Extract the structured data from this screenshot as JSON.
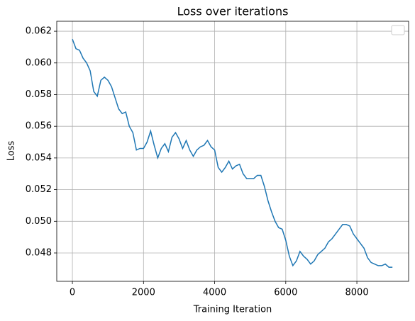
{
  "chart_data": {
    "type": "line",
    "title": "Loss over iterations",
    "x_label": "Training Iteration",
    "y_label": "Loss",
    "x": [
      0,
      100,
      200,
      300,
      400,
      500,
      600,
      700,
      800,
      900,
      1000,
      1100,
      1200,
      1300,
      1400,
      1500,
      1600,
      1700,
      1800,
      1900,
      2000,
      2100,
      2200,
      2300,
      2400,
      2500,
      2600,
      2700,
      2800,
      2900,
      3000,
      3100,
      3200,
      3300,
      3400,
      3500,
      3600,
      3700,
      3800,
      3900,
      4000,
      4100,
      4200,
      4300,
      4400,
      4500,
      4600,
      4700,
      4800,
      4900,
      5000,
      5100,
      5200,
      5300,
      5400,
      5500,
      5600,
      5700,
      5800,
      5900,
      6000,
      6100,
      6200,
      6300,
      6400,
      6500,
      6600,
      6700,
      6800,
      6900,
      7000,
      7100,
      7200,
      7300,
      7400,
      7500,
      7600,
      7700,
      7800,
      7900,
      8000,
      8100,
      8200,
      8300,
      8400,
      8500,
      8600,
      8700,
      8800,
      8900,
      9000
    ],
    "series": [
      {
        "color": "#1f77b4",
        "values": [
          0.0615,
          0.0609,
          0.0608,
          0.0603,
          0.06,
          0.0595,
          0.0582,
          0.0579,
          0.0589,
          0.0591,
          0.0589,
          0.0585,
          0.0578,
          0.0571,
          0.0568,
          0.0569,
          0.056,
          0.0556,
          0.0545,
          0.0546,
          0.0546,
          0.055,
          0.0557,
          0.0548,
          0.054,
          0.0546,
          0.0549,
          0.0544,
          0.0553,
          0.0556,
          0.0552,
          0.0546,
          0.0551,
          0.0545,
          0.0541,
          0.0545,
          0.0547,
          0.0548,
          0.0551,
          0.0547,
          0.0545,
          0.0534,
          0.0531,
          0.0534,
          0.0538,
          0.0533,
          0.0535,
          0.0536,
          0.053,
          0.0527,
          0.0527,
          0.0527,
          0.0529,
          0.0529,
          0.0522,
          0.0513,
          0.0506,
          0.05,
          0.0496,
          0.0495,
          0.0488,
          0.0478,
          0.0472,
          0.0475,
          0.0481,
          0.0478,
          0.0476,
          0.0473,
          0.0475,
          0.0479,
          0.0481,
          0.0483,
          0.0487,
          0.0489,
          0.0492,
          0.0495,
          0.0498,
          0.0498,
          0.0497,
          0.0492,
          0.0489,
          0.0486,
          0.0483,
          0.0477,
          0.0474,
          0.0473,
          0.0472,
          0.0472,
          0.0473,
          0.0471,
          0.0471
        ]
      }
    ],
    "xlim": [
      -440,
      9455
    ],
    "ylim": [
      0.04621,
      0.06263
    ],
    "xticks": [
      0,
      2000,
      4000,
      6000,
      8000
    ],
    "yticks": [
      0.048,
      {
        "value": 0.05,
        "label": "0.050"
      },
      0.052,
      0.054,
      0.056,
      0.058,
      {
        "value": 0.06,
        "label": "0.060"
      },
      0.062
    ],
    "grid": true,
    "legend": "upper right"
  }
}
